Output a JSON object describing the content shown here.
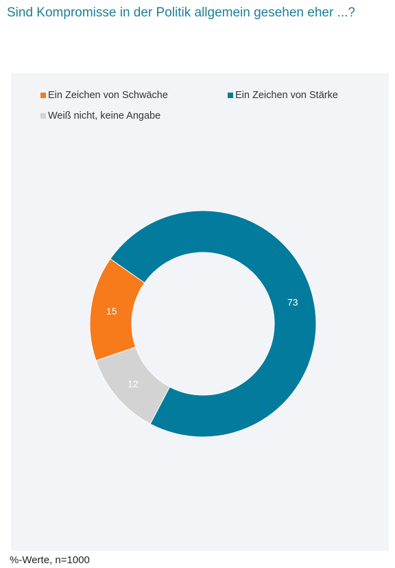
{
  "title": "Sind Kompromisse in der Politik allgemein gesehen eher ...?",
  "footnote": "%-Werte, n=1000",
  "chart_data": {
    "type": "pie",
    "variant": "donut",
    "legend_position": "top",
    "categories": [
      "Ein Zeichen von Schwäche",
      "Ein Zeichen von Stärke",
      "Weiß nicht, keine Angabe"
    ],
    "values": [
      15,
      73,
      12
    ],
    "colors": [
      "#f77a1b",
      "#037b9c",
      "#d3d3d3"
    ],
    "data_labels": [
      "15",
      "73",
      "12"
    ]
  }
}
